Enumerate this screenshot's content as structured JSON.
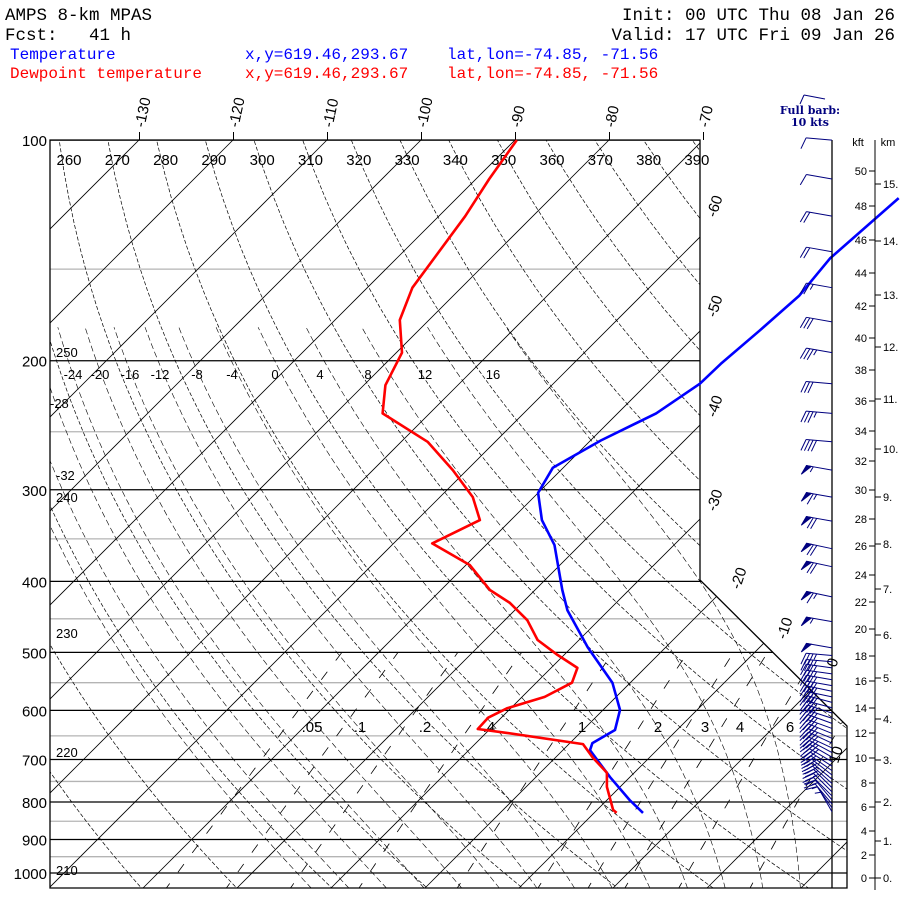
{
  "header": {
    "title": "AMPS 8-km MPAS",
    "forecast": "Fcst:   41 h",
    "init": "Init: 00 UTC Thu 08 Jan 26",
    "valid": "Valid: 17 UTC Fri 09 Jan 26"
  },
  "legend": [
    {
      "label": "Temperature",
      "xy": "x,y=619.46,293.67",
      "latlon": "lat,lon=-74.85, -71.56",
      "color": "#0000ff"
    },
    {
      "label": "Dewpoint temperature",
      "xy": "x,y=619.46,293.67",
      "latlon": "lat,lon=-74.85, -71.56",
      "color": "#ff0000"
    }
  ],
  "barb_legend": {
    "line1": "Full barb:",
    "line2": "10 kts"
  },
  "axes": {
    "kft_title": "kft",
    "km_title": "km",
    "kft_labels": [
      "50",
      "48",
      "46",
      "44",
      "42",
      "40",
      "38",
      "36",
      "34",
      "32",
      "30",
      "28",
      "26",
      "24",
      "22",
      "20",
      "18",
      "16",
      "14",
      "12",
      "10",
      "8",
      "6",
      "4",
      "2",
      "0"
    ],
    "km_labels": [
      "15.",
      "14.",
      "13.",
      "12.",
      "11.",
      "10.",
      "9.",
      "8.",
      "7.",
      "6.",
      "5.",
      "4.",
      "3.",
      "2.",
      "1.",
      "0."
    ]
  },
  "chart_data": {
    "type": "line",
    "subtype": "skew-T log-p",
    "pressure_levels": [
      "100",
      "200",
      "300",
      "400",
      "500",
      "600",
      "700",
      "800",
      "900",
      "1000"
    ],
    "ylim_hPa": [
      1000,
      100
    ],
    "isotherm_labels_top": [
      "-130",
      "-120",
      "-110",
      "-100",
      "-90",
      "-80",
      "-70"
    ],
    "isotherm_labels_right": [
      "-60",
      "-50",
      "-40",
      "-30",
      "-20",
      "-10",
      "0",
      "10"
    ],
    "dry_adiabat_labels_top": [
      "260",
      "270",
      "280",
      "290",
      "300",
      "310",
      "320",
      "330",
      "340",
      "350",
      "360",
      "370",
      "380",
      "390"
    ],
    "dry_adiabat_labels_left": [
      "250",
      "240",
      "230",
      "220",
      "210"
    ],
    "moist_adiabat_labels": [
      "-24",
      "-20",
      "-16",
      "-12",
      "-8",
      "-4",
      "0",
      "4",
      "8",
      "12",
      "16"
    ],
    "moist_adiabat_labels_left": [
      "-28",
      "-32"
    ],
    "mixing_ratio_labels": [
      ".05",
      ".1",
      ".2",
      ".4",
      "1",
      "2",
      "3",
      "4",
      "6"
    ],
    "series": [
      {
        "name": "Temperature",
        "color": "#0000ff",
        "units": "hPa, degC",
        "points": [
          [
            120,
            -43.0
          ],
          [
            145,
            -43.9
          ],
          [
            163,
            -43.2
          ],
          [
            182,
            -43.7
          ],
          [
            202,
            -44.3
          ],
          [
            215,
            -44.4
          ],
          [
            236,
            -45.9
          ],
          [
            257,
            -48.9
          ],
          [
            280,
            -51.1
          ],
          [
            303,
            -50.0
          ],
          [
            330,
            -46.7
          ],
          [
            357,
            -42.7
          ],
          [
            411,
            -37.1
          ],
          [
            438,
            -34.4
          ],
          [
            492,
            -28.3
          ],
          [
            550,
            -21.9
          ],
          [
            599,
            -18.2
          ],
          [
            638,
            -16.6
          ],
          [
            665,
            -17.6
          ],
          [
            680,
            -17.1
          ],
          [
            740,
            -12.1
          ],
          [
            795,
            -7.6
          ],
          [
            828,
            -4.8
          ]
        ]
      },
      {
        "name": "Dewpoint temperature",
        "color": "#ff0000",
        "units": "hPa, degC",
        "points": [
          [
            100,
            -89.8
          ],
          [
            113,
            -88.6
          ],
          [
            127,
            -87.2
          ],
          [
            159,
            -85.2
          ],
          [
            176,
            -83.1
          ],
          [
            195,
            -79.4
          ],
          [
            216,
            -77.7
          ],
          [
            236,
            -75.0
          ],
          [
            258,
            -67.2
          ],
          [
            282,
            -61.5
          ],
          [
            307,
            -56.5
          ],
          [
            330,
            -53.3
          ],
          [
            355,
            -55.9
          ],
          [
            380,
            -49.6
          ],
          [
            411,
            -44.8
          ],
          [
            428,
            -41.3
          ],
          [
            452,
            -37.6
          ],
          [
            481,
            -34.4
          ],
          [
            504,
            -30.7
          ],
          [
            525,
            -27.2
          ],
          [
            550,
            -26.2
          ],
          [
            575,
            -27.6
          ],
          [
            596,
            -30.4
          ],
          [
            614,
            -31.4
          ],
          [
            636,
            -31.3
          ],
          [
            644,
            -27.8
          ],
          [
            667,
            -18.5
          ],
          [
            695,
            -16.1
          ],
          [
            730,
            -12.9
          ],
          [
            763,
            -11.4
          ],
          [
            820,
            -8.3
          ],
          [
            828,
            -7.6
          ]
        ]
      }
    ],
    "wind_barbs_units": "hPa, kts, deg",
    "wind_barbs": [
      [
        100,
        10,
        275
      ],
      [
        113,
        10,
        280
      ],
      [
        127,
        20,
        280
      ],
      [
        142,
        20,
        280
      ],
      [
        159,
        25,
        280
      ],
      [
        177,
        30,
        280
      ],
      [
        195,
        35,
        280
      ],
      [
        215,
        30,
        275
      ],
      [
        236,
        35,
        275
      ],
      [
        258,
        40,
        275
      ],
      [
        282,
        55,
        280
      ],
      [
        307,
        65,
        280
      ],
      [
        331,
        70,
        280
      ],
      [
        361,
        70,
        282
      ],
      [
        382,
        70,
        282
      ],
      [
        420,
        65,
        282
      ],
      [
        454,
        55,
        280
      ],
      [
        493,
        50,
        280
      ],
      [
        505,
        35,
        275
      ],
      [
        515,
        35,
        275
      ],
      [
        525,
        35,
        278
      ],
      [
        535,
        35,
        278
      ],
      [
        545,
        40,
        280
      ],
      [
        555,
        40,
        280
      ],
      [
        565,
        40,
        282
      ],
      [
        575,
        40,
        282
      ],
      [
        585,
        40,
        285
      ],
      [
        595,
        40,
        285
      ],
      [
        605,
        40,
        288
      ],
      [
        615,
        40,
        288
      ],
      [
        625,
        40,
        290
      ],
      [
        635,
        40,
        290
      ],
      [
        645,
        40,
        292
      ],
      [
        655,
        35,
        292
      ],
      [
        665,
        35,
        295
      ],
      [
        675,
        35,
        295
      ],
      [
        685,
        35,
        298
      ],
      [
        695,
        35,
        300
      ],
      [
        705,
        30,
        300
      ],
      [
        715,
        30,
        303
      ],
      [
        725,
        30,
        305
      ],
      [
        735,
        30,
        308
      ],
      [
        745,
        30,
        310
      ],
      [
        755,
        25,
        312
      ],
      [
        765,
        25,
        315
      ],
      [
        775,
        20,
        315
      ],
      [
        785,
        20,
        315
      ],
      [
        795,
        15,
        320
      ],
      [
        805,
        15,
        320
      ],
      [
        815,
        10,
        325
      ],
      [
        825,
        5,
        330
      ]
    ]
  }
}
